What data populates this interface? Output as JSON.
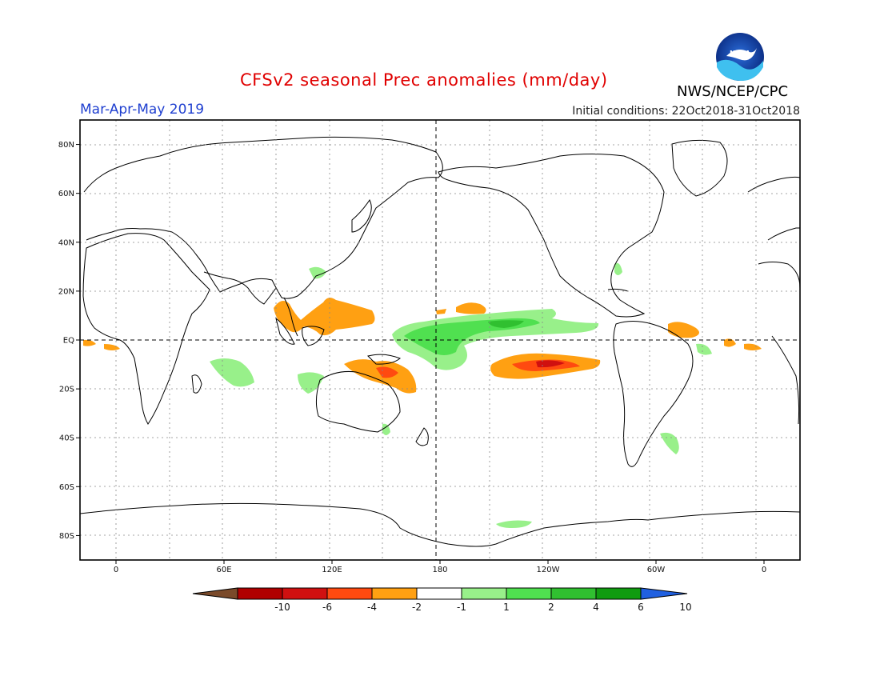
{
  "header": {
    "title": "CFSv2 seasonal Prec anomalies (mm/day)",
    "period": "Mar-Apr-May 2019",
    "initial_conditions": "Initial conditions: 22Oct2018-31Oct2018",
    "agency": "NWS/NCEP/CPC",
    "logo_text": "NOAA"
  },
  "map": {
    "lat_labels": [
      "80N",
      "60N",
      "40N",
      "20N",
      "EQ",
      "20S",
      "40S",
      "60S",
      "80S"
    ],
    "lat_values": [
      80,
      60,
      40,
      20,
      0,
      -20,
      -40,
      -60,
      -80
    ],
    "lon_labels": [
      "0",
      "60E",
      "120E",
      "180",
      "120W",
      "60W",
      "0"
    ],
    "lon_values": [
      0,
      60,
      120,
      180,
      240,
      300,
      360
    ],
    "lon_range": [
      -20,
      380
    ],
    "lat_range": [
      -90,
      90
    ],
    "land_color": "#ffffff",
    "coast_color": "#000000"
  },
  "colorbar": {
    "labels": [
      "-10",
      "-6",
      "-4",
      "-2",
      "-1",
      "1",
      "2",
      "4",
      "6",
      "10"
    ],
    "colors": [
      "#7a4a2a",
      "#b00000",
      "#d01010",
      "#ff4a10",
      "#ffa012",
      "#ffffff",
      "#98f08a",
      "#50e050",
      "#30c030",
      "#109c10",
      "#2060e0"
    ]
  },
  "anomalies": [
    {
      "name": "maritime-continent-dry",
      "level": "-2",
      "lon": [
        95,
        150
      ],
      "lat": [
        -25,
        20
      ]
    },
    {
      "name": "south-pacific-dry",
      "level": "-4",
      "lon": [
        210,
        250
      ],
      "lat": [
        -20,
        -5
      ]
    },
    {
      "name": "central-pacific-wet",
      "level": "4",
      "lon": [
        160,
        250
      ],
      "lat": [
        -15,
        10
      ]
    },
    {
      "name": "indian-ocean-wet",
      "level": "2",
      "lon": [
        50,
        95
      ],
      "lat": [
        -20,
        -5
      ]
    },
    {
      "name": "equatorial-atlantic-dry",
      "level": "-2",
      "lon": [
        300,
        360
      ],
      "lat": [
        -5,
        8
      ]
    }
  ]
}
